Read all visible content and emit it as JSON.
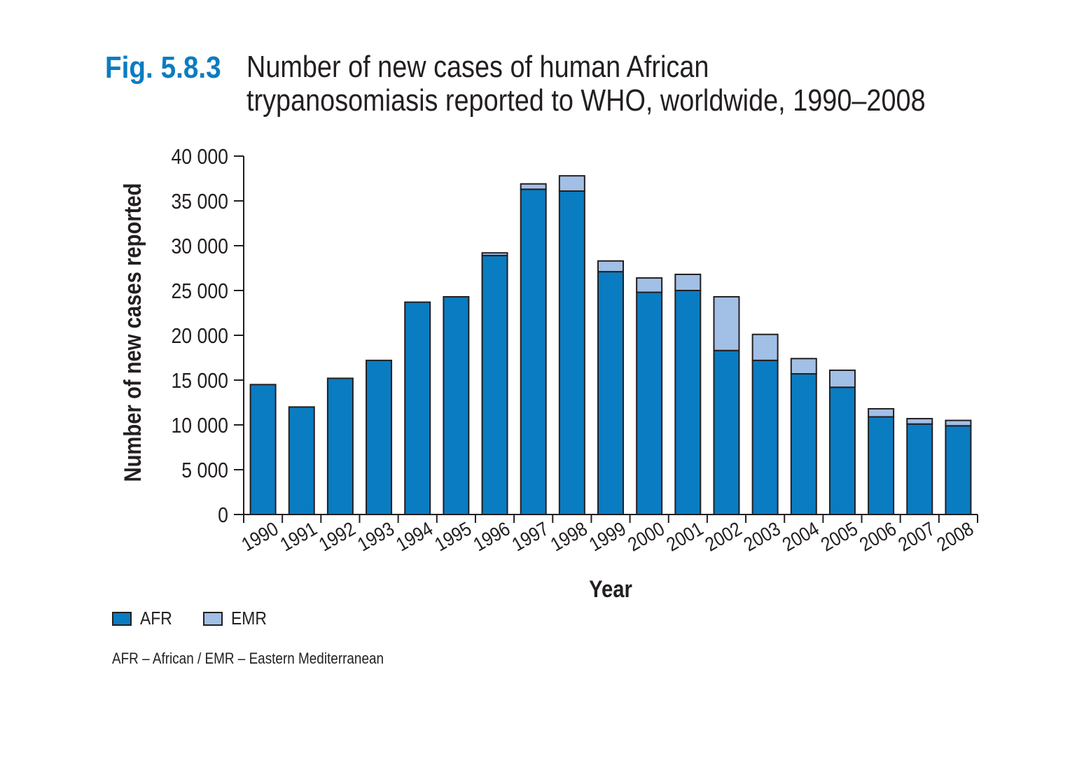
{
  "figure": {
    "label": "Fig. 5.8.3",
    "title_line1": "Number of new cases of human African",
    "title_line2": "trypanosomiasis reported to WHO, worldwide, 1990–2008"
  },
  "legend": {
    "afr_label": "AFR",
    "emr_label": "EMR"
  },
  "footnote": "AFR – African / EMR – Eastern Mediterranean",
  "colors": {
    "afr": "#0a7cc1",
    "emr": "#a2bfe6",
    "title_accent": "#0a7cc1",
    "axis": "#231f20"
  },
  "chart_data": {
    "type": "bar",
    "stacked": true,
    "xlabel": "Year",
    "ylabel": "Number of new cases reported",
    "ylim": [
      0,
      40000
    ],
    "yticks": [
      0,
      5000,
      10000,
      15000,
      20000,
      25000,
      30000,
      35000,
      40000
    ],
    "ytick_labels": [
      "0",
      "5 000",
      "10 000",
      "15 000",
      "20 000",
      "25 000",
      "30 000",
      "35 000",
      "40 000"
    ],
    "categories": [
      "1990",
      "1991",
      "1992",
      "1993",
      "1994",
      "1995",
      "1996",
      "1997",
      "1998",
      "1999",
      "2000",
      "2001",
      "2002",
      "2003",
      "2004",
      "2005",
      "2006",
      "2007",
      "2008"
    ],
    "series": [
      {
        "name": "AFR",
        "color": "#0a7cc1",
        "values": [
          14500,
          12000,
          15200,
          17200,
          23700,
          24300,
          28900,
          36300,
          36100,
          27100,
          24800,
          25000,
          18300,
          17200,
          15700,
          14200,
          10900,
          10100,
          9900
        ]
      },
      {
        "name": "EMR",
        "color": "#a2bfe6",
        "values": [
          0,
          0,
          0,
          0,
          0,
          0,
          300,
          600,
          1700,
          1200,
          1600,
          1800,
          6000,
          2900,
          1700,
          1900,
          900,
          600,
          600
        ]
      }
    ],
    "grid": false,
    "legend_position": "bottom-left"
  }
}
